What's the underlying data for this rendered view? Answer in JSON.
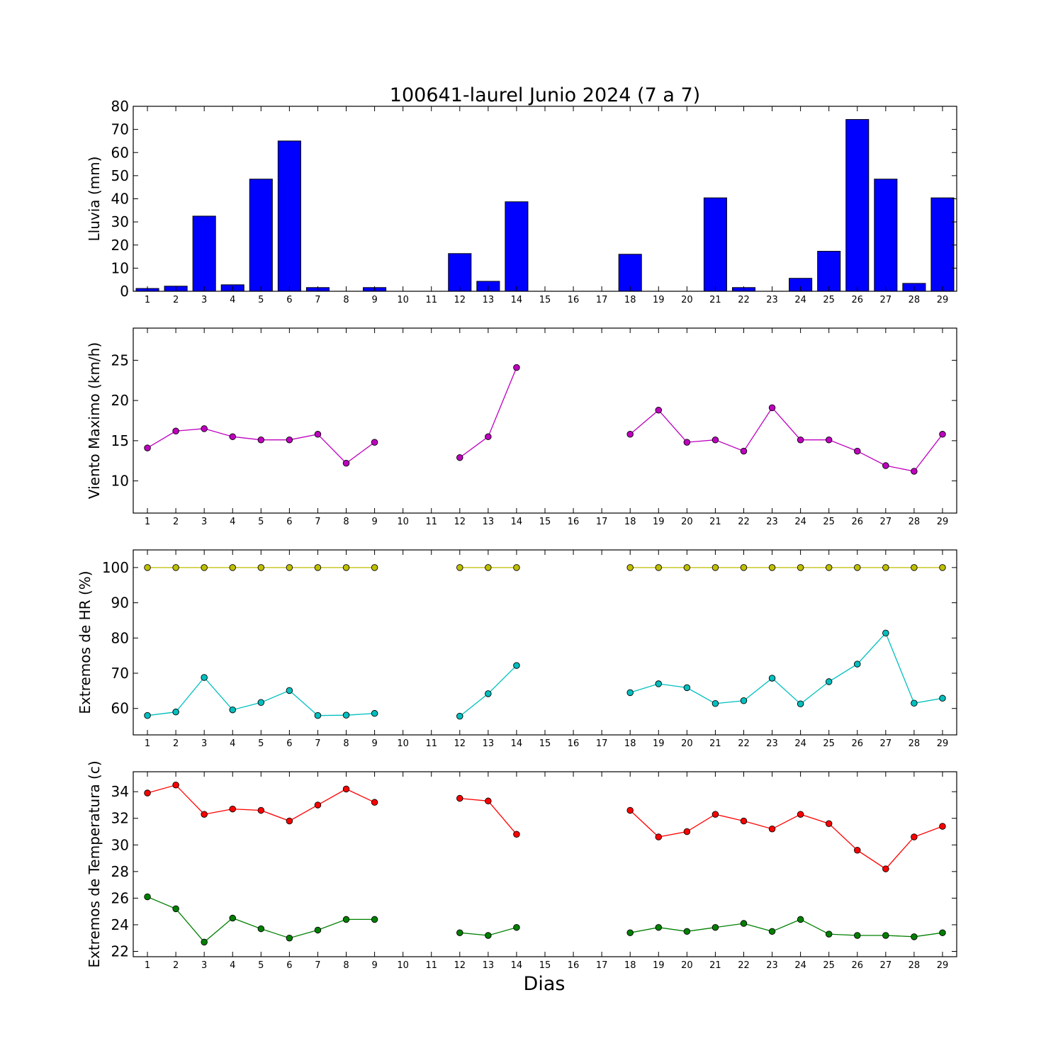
{
  "figure": {
    "title": "100641-laurel Junio 2024  (7 a 7)",
    "xlabel": "Dias"
  },
  "chart_data": [
    {
      "type": "bar",
      "ylabel": "Lluvia (mm)",
      "x": [
        1,
        2,
        3,
        4,
        5,
        6,
        7,
        8,
        9,
        10,
        11,
        12,
        13,
        14,
        15,
        16,
        17,
        18,
        19,
        20,
        21,
        22,
        23,
        24,
        25,
        26,
        27,
        28,
        29
      ],
      "xlim": [
        0.5,
        29.5
      ],
      "ylim": [
        0,
        80
      ],
      "yticks": [
        0,
        10,
        20,
        30,
        40,
        50,
        60,
        70,
        80
      ],
      "series": [
        {
          "color": "#0000ff",
          "values": [
            1.2,
            2.2,
            32.5,
            2.8,
            48.5,
            65.0,
            1.6,
            0,
            1.6,
            0,
            0,
            16.3,
            4.3,
            38.7,
            0,
            0,
            0,
            16.0,
            0,
            0,
            40.4,
            1.6,
            0,
            5.6,
            17.3,
            74.3,
            48.5,
            3.4,
            40.4
          ]
        }
      ]
    },
    {
      "type": "line",
      "ylabel": "Viento Maximo (km/h)",
      "x": [
        1,
        2,
        3,
        4,
        5,
        6,
        7,
        8,
        9,
        10,
        11,
        12,
        13,
        14,
        15,
        16,
        17,
        18,
        19,
        20,
        21,
        22,
        23,
        24,
        25,
        26,
        27,
        28,
        29
      ],
      "xlim": [
        0.5,
        29.5
      ],
      "ylim": [
        6,
        29
      ],
      "yticks": [
        10,
        15,
        20,
        25
      ],
      "series": [
        {
          "color": "#bf00bf",
          "values": [
            14.1,
            16.2,
            16.5,
            15.5,
            15.1,
            15.1,
            15.8,
            12.2,
            14.8,
            null,
            null,
            12.9,
            15.5,
            24.1,
            null,
            null,
            null,
            15.8,
            18.8,
            14.8,
            15.1,
            13.7,
            19.1,
            15.1,
            15.1,
            13.7,
            11.9,
            11.2,
            15.8
          ]
        }
      ]
    },
    {
      "type": "line",
      "ylabel": "Extremos de HR (%)",
      "x": [
        1,
        2,
        3,
        4,
        5,
        6,
        7,
        8,
        9,
        10,
        11,
        12,
        13,
        14,
        15,
        16,
        17,
        18,
        19,
        20,
        21,
        22,
        23,
        24,
        25,
        26,
        27,
        28,
        29
      ],
      "xlim": [
        0.5,
        29.5
      ],
      "ylim": [
        52.5,
        105
      ],
      "yticks": [
        60,
        70,
        80,
        90,
        100
      ],
      "series": [
        {
          "color": "#bfbf00",
          "values": [
            100,
            100,
            100,
            100,
            100,
            100,
            100,
            100,
            100,
            null,
            null,
            100,
            100,
            100,
            null,
            null,
            null,
            100,
            100,
            100,
            100,
            100,
            100,
            100,
            100,
            100,
            100,
            100,
            100
          ]
        },
        {
          "color": "#00bfbf",
          "values": [
            58.0,
            59.0,
            68.8,
            59.6,
            61.7,
            65.1,
            58.0,
            58.1,
            58.6,
            null,
            null,
            57.8,
            64.2,
            72.2,
            null,
            null,
            null,
            64.5,
            67.0,
            65.9,
            61.4,
            62.2,
            68.6,
            61.3,
            67.6,
            72.6,
            81.4,
            61.5,
            62.9
          ]
        }
      ]
    },
    {
      "type": "line",
      "ylabel": "Extremos de Temperatura (c)",
      "x": [
        1,
        2,
        3,
        4,
        5,
        6,
        7,
        8,
        9,
        10,
        11,
        12,
        13,
        14,
        15,
        16,
        17,
        18,
        19,
        20,
        21,
        22,
        23,
        24,
        25,
        26,
        27,
        28,
        29
      ],
      "xlim": [
        0.5,
        29.5
      ],
      "ylim": [
        21.6,
        35.5
      ],
      "yticks": [
        22,
        24,
        26,
        28,
        30,
        32,
        34
      ],
      "series": [
        {
          "color": "#ff0000",
          "values": [
            33.9,
            34.5,
            32.3,
            32.7,
            32.6,
            31.8,
            33.0,
            34.2,
            33.2,
            null,
            null,
            33.5,
            33.3,
            30.8,
            null,
            null,
            null,
            32.6,
            30.6,
            31.0,
            32.3,
            31.8,
            31.2,
            32.3,
            31.6,
            29.6,
            28.2,
            30.6,
            31.4
          ]
        },
        {
          "color": "#008000",
          "values": [
            26.1,
            25.2,
            22.7,
            24.5,
            23.7,
            23.0,
            23.6,
            24.4,
            24.4,
            null,
            null,
            23.4,
            23.2,
            23.8,
            null,
            null,
            null,
            23.4,
            23.8,
            23.5,
            23.8,
            24.1,
            23.5,
            24.4,
            23.3,
            23.2,
            23.2,
            23.1,
            23.4
          ]
        }
      ]
    }
  ]
}
